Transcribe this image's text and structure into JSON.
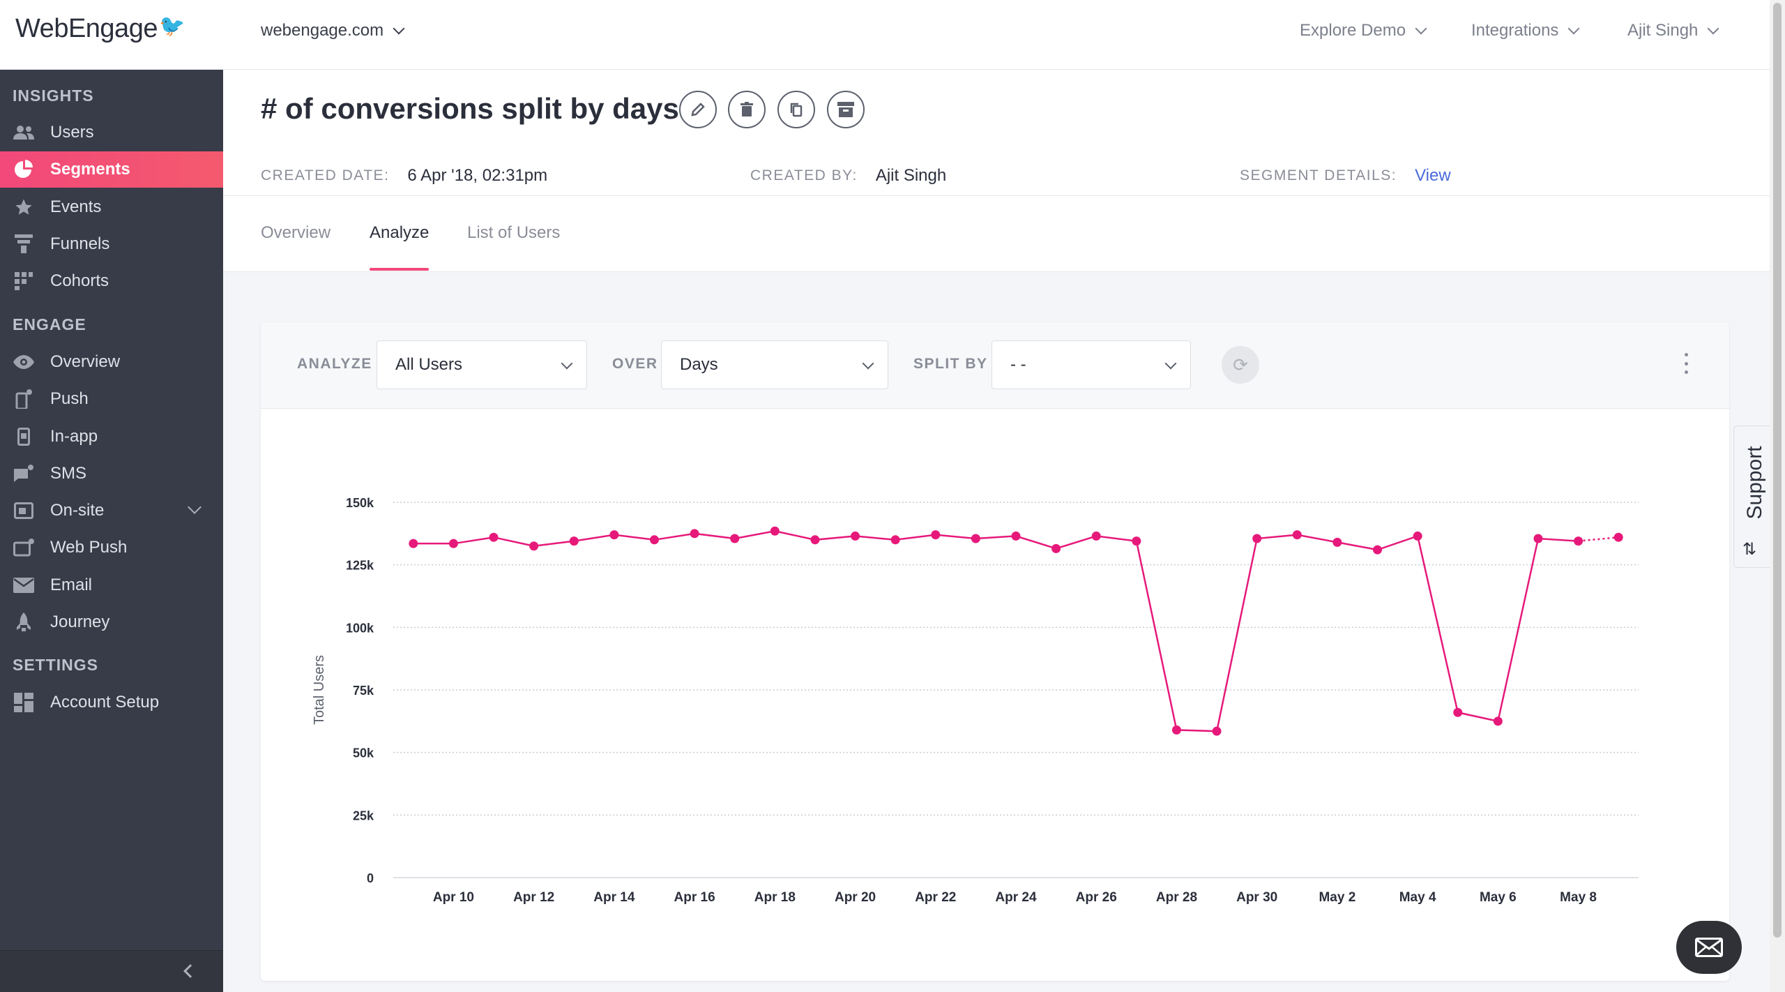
{
  "app": {
    "logo": "WebEngage",
    "domain": "webengage.com",
    "nav": {
      "explore_demo": "Explore Demo",
      "integrations": "Integrations",
      "user": "Ajit Singh"
    }
  },
  "sidebar": {
    "sections": {
      "insights": "INSIGHTS",
      "engage": "ENGAGE",
      "settings": "SETTINGS"
    },
    "items": {
      "users": "Users",
      "segments": "Segments",
      "events": "Events",
      "funnels": "Funnels",
      "cohorts": "Cohorts",
      "overview": "Overview",
      "push": "Push",
      "inapp": "In-app",
      "sms": "SMS",
      "onsite": "On-site",
      "webpush": "Web Push",
      "email": "Email",
      "journey": "Journey",
      "account_setup": "Account Setup"
    },
    "active": "segments"
  },
  "page": {
    "title": "# of conversions split by days",
    "created_date_label": "CREATED DATE:",
    "created_date": "6 Apr '18, 02:31pm",
    "created_by_label": "CREATED BY:",
    "created_by": "Ajit Singh",
    "segment_details_label": "SEGMENT DETAILS:",
    "segment_details_link": "View",
    "tabs": {
      "overview": "Overview",
      "analyze": "Analyze",
      "list_of_users": "List of Users"
    },
    "active_tab": "analyze"
  },
  "filters": {
    "analyze_label": "ANALYZE",
    "analyze_value": "All Users",
    "over_label": "OVER",
    "over_value": "Days",
    "split_label": "SPLIT BY",
    "split_value": "- -"
  },
  "support": {
    "label": "Support"
  },
  "colors": {
    "accent": "#f2487a",
    "series": "#e6197a",
    "sidebar_bg": "#383b48",
    "link": "#4a6ad9"
  },
  "chart_data": {
    "type": "line",
    "ylabel": "Total Users",
    "ylim": [
      0,
      150000
    ],
    "yticks": [
      0,
      25000,
      50000,
      75000,
      100000,
      125000,
      150000
    ],
    "ytick_labels": [
      "0",
      "25k",
      "50k",
      "75k",
      "100k",
      "125k",
      "150k"
    ],
    "x_tick_labels": [
      "Apr 10",
      "Apr 12",
      "Apr 14",
      "Apr 16",
      "Apr 18",
      "Apr 20",
      "Apr 22",
      "Apr 24",
      "Apr 26",
      "Apr 28",
      "Apr 30",
      "May 2",
      "May 4",
      "May 6",
      "May 8"
    ],
    "x": [
      "Apr 9",
      "Apr 10",
      "Apr 11",
      "Apr 12",
      "Apr 13",
      "Apr 14",
      "Apr 15",
      "Apr 16",
      "Apr 17",
      "Apr 18",
      "Apr 19",
      "Apr 20",
      "Apr 21",
      "Apr 22",
      "Apr 23",
      "Apr 24",
      "Apr 25",
      "Apr 26",
      "Apr 27",
      "Apr 28",
      "Apr 29",
      "Apr 30",
      "May 1",
      "May 2",
      "May 3",
      "May 4",
      "May 5",
      "May 6",
      "May 7",
      "May 8",
      "May 9"
    ],
    "series": [
      {
        "values": [
          133500,
          133500,
          136000,
          132500,
          134500,
          137000,
          135000,
          137500,
          135500,
          138500,
          135000,
          136500,
          135000,
          137000,
          135500,
          136500,
          131500,
          136500,
          134500,
          59000,
          58500,
          135500,
          137000,
          134000,
          131000,
          136500,
          66000,
          62500,
          135500,
          134500,
          136000
        ]
      }
    ],
    "grid": true
  }
}
